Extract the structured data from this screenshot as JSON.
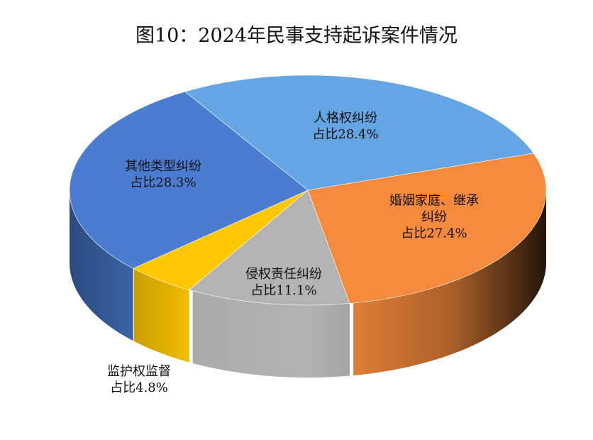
{
  "chart_data": {
    "type": "pie",
    "style": "3d",
    "title": "图10：2024年民事支持起诉案件情况",
    "slices": [
      {
        "name": "人格权纠纷",
        "label": "占比28.4%",
        "value": 28.4,
        "color": "#64a5e4"
      },
      {
        "name": "婚姻家庭、继承纠纷",
        "label": "占比27.4%",
        "value": 27.4,
        "color": "#f68a3c"
      },
      {
        "name": "侵权责任纠纷",
        "label": "占比11.1%",
        "value": 11.1,
        "color": "#b3b3b3"
      },
      {
        "name": "监护权监督",
        "label": "占比4.8%",
        "value": 4.8,
        "color": "#ffc800"
      },
      {
        "name": "其他类型纠纷",
        "label": "占比28.3%",
        "value": 28.3,
        "color": "#4a7dd2"
      }
    ]
  }
}
